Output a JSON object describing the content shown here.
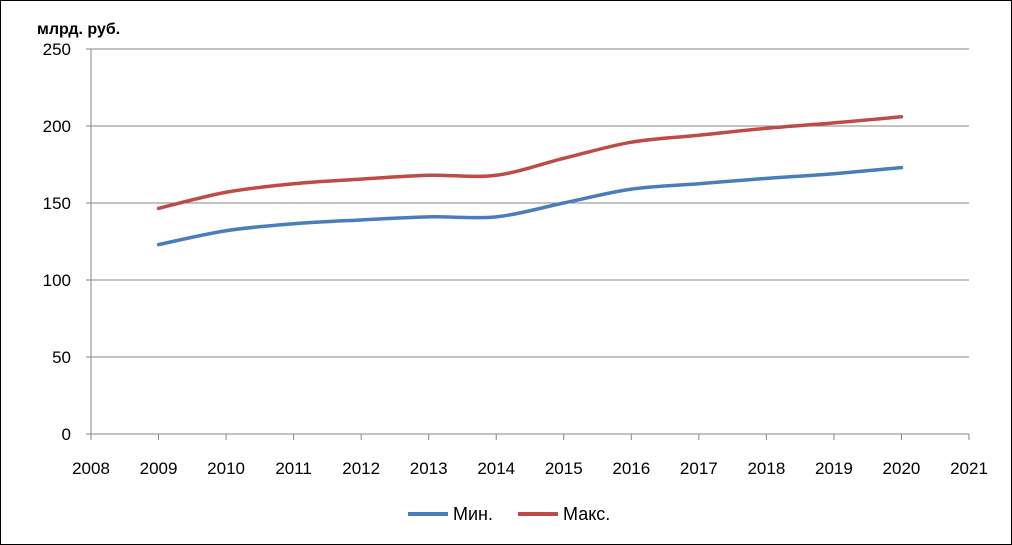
{
  "chart_data": {
    "type": "line",
    "title": "",
    "ylabel": "млрд. руб.",
    "xlabel": "",
    "x": [
      2009,
      2010,
      2011,
      2012,
      2013,
      2014,
      2015,
      2016,
      2017,
      2018,
      2019,
      2020
    ],
    "xlim": [
      2008,
      2021
    ],
    "ylim": [
      0,
      250
    ],
    "x_ticks": [
      "2008",
      "2009",
      "2010",
      "2011",
      "2012",
      "2013",
      "2014",
      "2015",
      "2016",
      "2017",
      "2018",
      "2019",
      "2020",
      "2021"
    ],
    "y_ticks": [
      "0",
      "50",
      "100",
      "150",
      "200",
      "250"
    ],
    "grid": "horizontal",
    "legend": "bottom",
    "series": [
      {
        "name": "Мин.",
        "color": "#4a7ebb",
        "values": [
          123,
          132,
          136.5,
          139,
          141,
          141,
          150,
          159,
          162.5,
          166,
          169,
          173
        ]
      },
      {
        "name": "Макс.",
        "color": "#be4b48",
        "values": [
          146.5,
          157,
          162.5,
          165.5,
          168,
          168,
          179,
          189.5,
          194,
          198.5,
          202,
          206
        ]
      }
    ]
  }
}
